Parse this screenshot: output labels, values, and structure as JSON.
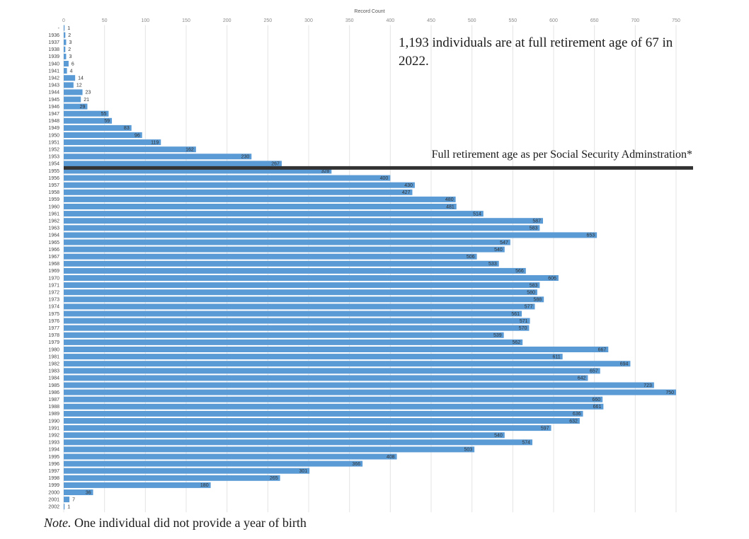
{
  "chart_data": {
    "type": "bar",
    "orientation": "horizontal",
    "title": "",
    "xlabel": "Record Count",
    "ylabel": "",
    "xlim": [
      0,
      750
    ],
    "x_ticks": [
      0,
      50,
      100,
      150,
      200,
      250,
      300,
      350,
      400,
      450,
      500,
      550,
      600,
      650,
      700,
      750
    ],
    "grid": true,
    "color": "#5b9bd5",
    "categories": [
      "-",
      "1936",
      "1937",
      "1938",
      "1939",
      "1940",
      "1941",
      "1942",
      "1943",
      "1944",
      "1945",
      "1946",
      "1947",
      "1948",
      "1949",
      "1950",
      "1951",
      "1952",
      "1953",
      "1954",
      "1955",
      "1956",
      "1957",
      "1958",
      "1959",
      "1960",
      "1961",
      "1962",
      "1963",
      "1964",
      "1965",
      "1966",
      "1967",
      "1968",
      "1969",
      "1970",
      "1971",
      "1972",
      "1973",
      "1974",
      "1975",
      "1976",
      "1977",
      "1978",
      "1979",
      "1980",
      "1981",
      "1982",
      "1983",
      "1984",
      "1985",
      "1986",
      "1987",
      "1988",
      "1989",
      "1990",
      "1991",
      "1992",
      "1993",
      "1994",
      "1995",
      "1996",
      "1997",
      "1998",
      "1999",
      "2000",
      "2001",
      "2002"
    ],
    "values": [
      1,
      2,
      3,
      2,
      3,
      6,
      4,
      14,
      12,
      23,
      21,
      29,
      55,
      59,
      83,
      96,
      119,
      162,
      230,
      267,
      328,
      400,
      430,
      427,
      480,
      481,
      514,
      587,
      583,
      653,
      547,
      540,
      506,
      533,
      566,
      606,
      583,
      580,
      588,
      577,
      561,
      571,
      570,
      539,
      562,
      667,
      611,
      694,
      657,
      642,
      723,
      750,
      660,
      661,
      636,
      632,
      597,
      540,
      574,
      503,
      408,
      366,
      301,
      265,
      180,
      36,
      7,
      1
    ],
    "annotations": [
      {
        "text": "1,193 individuals are at full retirement age of 67 in 2022."
      },
      {
        "text": "Full retirement age as per Social Security Adminstration*",
        "after_category": "1954"
      }
    ]
  },
  "note": {
    "prefix": "Note.",
    "text": " One individual did not provide a year of birth"
  }
}
